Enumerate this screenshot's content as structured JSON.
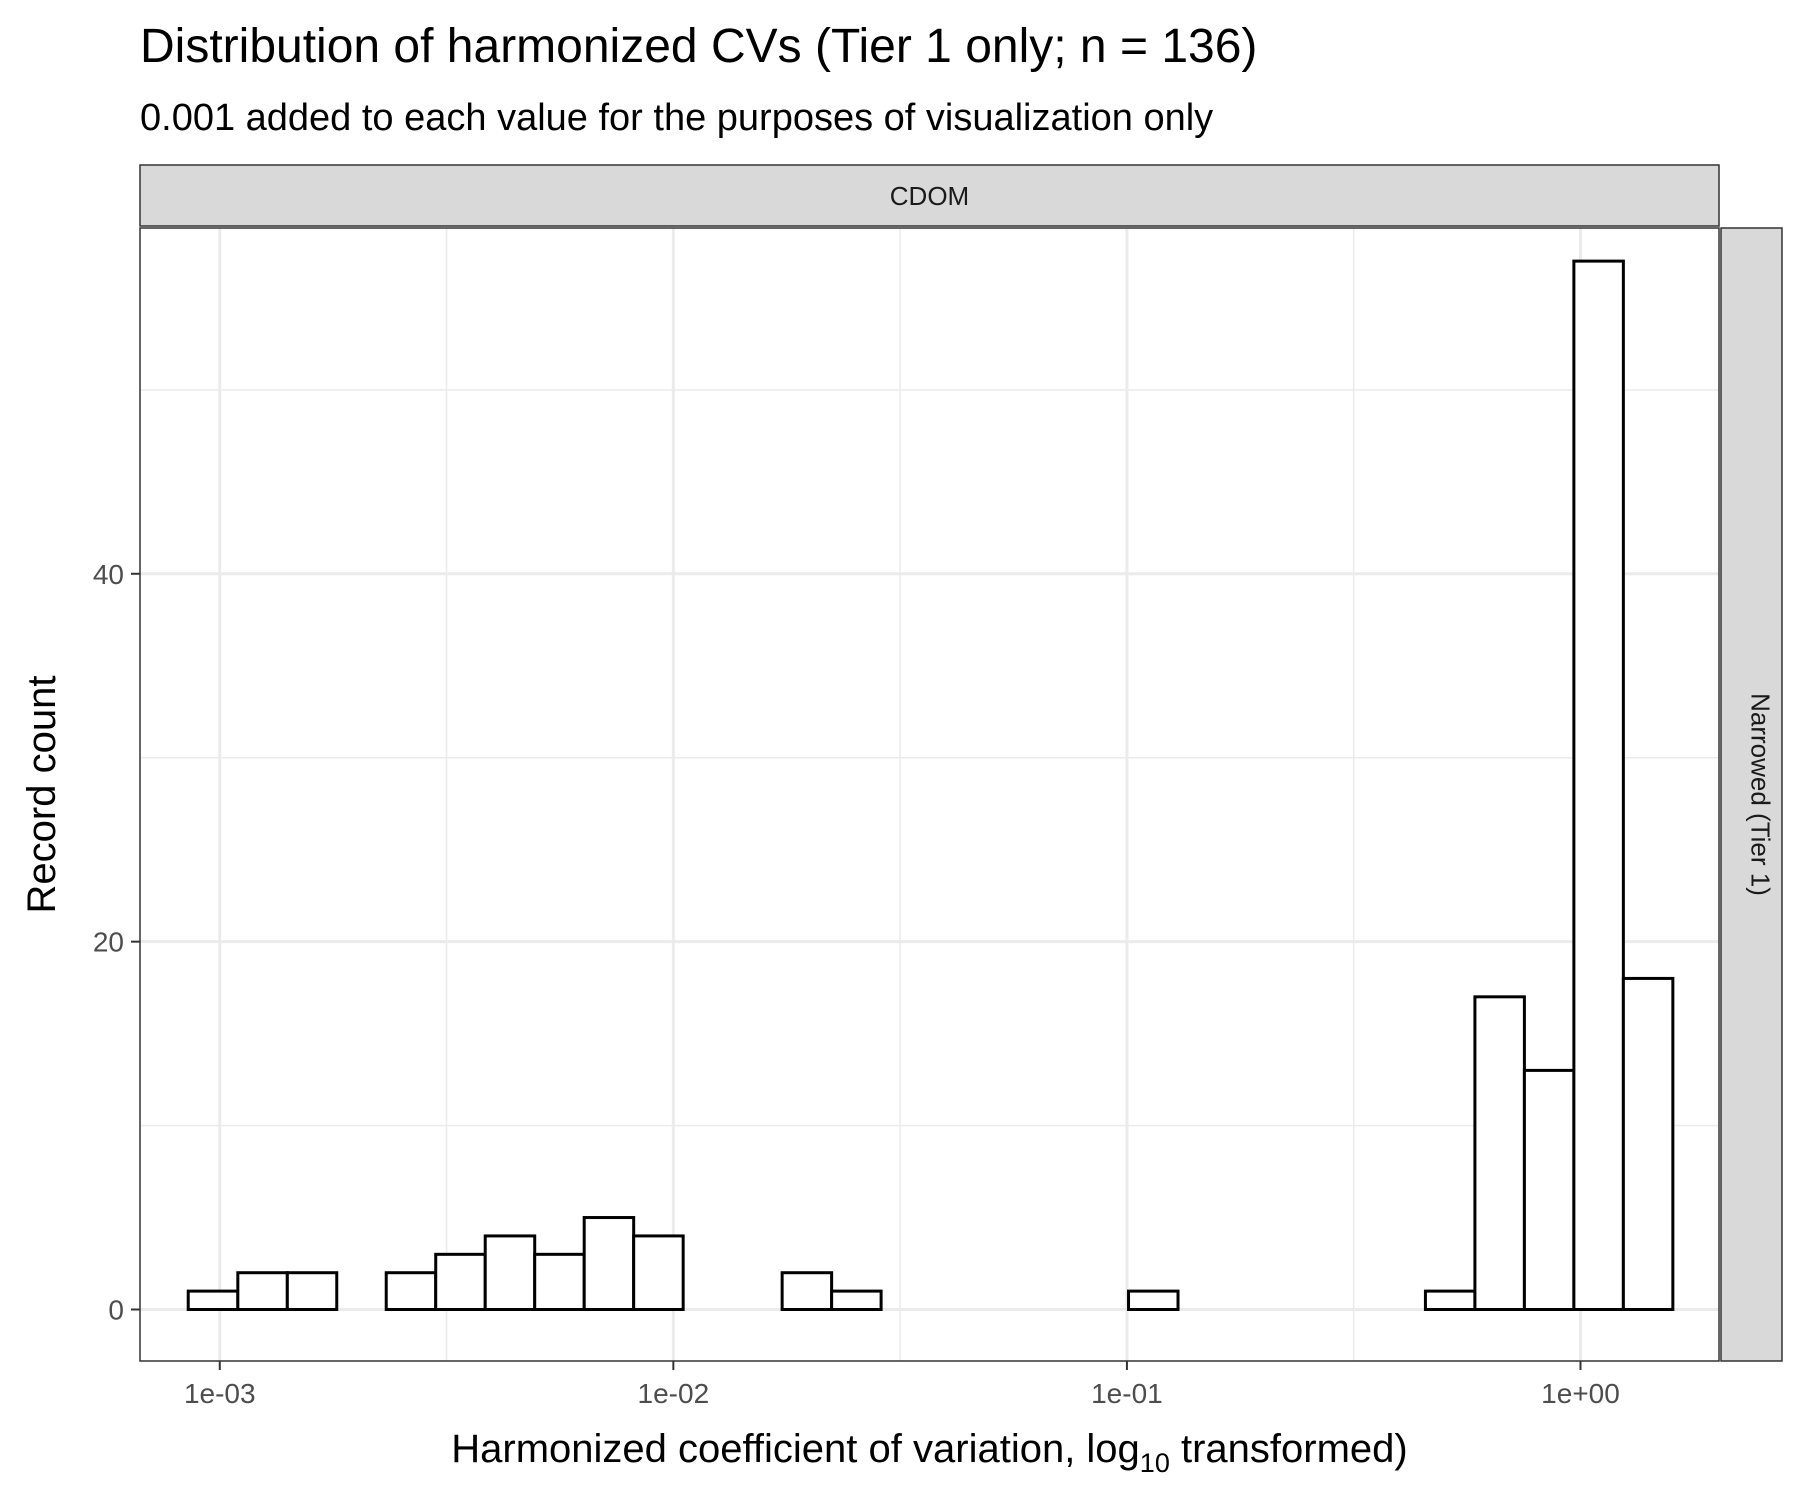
{
  "chart_data": {
    "type": "bar",
    "title": "Distribution of harmonized CVs (Tier 1 only; n = 136)",
    "subtitle": "0.001 added to each value for the purposes of visualization only",
    "facet_top": "CDOM",
    "facet_right": "Narrowed (Tier 1)",
    "xlabel": {
      "before": "Harmonized coefficient of variation,  log",
      "sub": "10",
      "after": "  transformed)"
    },
    "ylabel": "Record count",
    "x_scale": "log10",
    "xlim": [
      0.000667,
      2.02
    ],
    "ylim": [
      -2.8,
      58.8
    ],
    "x_ticks": [
      {
        "value": 0.001,
        "label": "1e-03"
      },
      {
        "value": 0.01,
        "label": "1e-02"
      },
      {
        "value": 0.1,
        "label": "1e-01"
      },
      {
        "value": 1,
        "label": "1e+00"
      }
    ],
    "y_ticks": [
      {
        "value": 0,
        "label": "0"
      },
      {
        "value": 20,
        "label": "20"
      },
      {
        "value": 40,
        "label": "40"
      }
    ],
    "x_minor_ticks": [
      0.003162,
      0.03162,
      0.3162
    ],
    "y_minor_ticks": [
      10,
      30,
      50
    ],
    "grid": true,
    "bins": [
      {
        "x0": 0.000852,
        "x1": 0.001096,
        "count": 1
      },
      {
        "x0": 0.001096,
        "x1": 0.001409,
        "count": 2
      },
      {
        "x0": 0.001409,
        "x1": 0.001811,
        "count": 2
      },
      {
        "x0": 0.001811,
        "x1": 0.002328,
        "count": 0
      },
      {
        "x0": 0.002328,
        "x1": 0.002993,
        "count": 2
      },
      {
        "x0": 0.002993,
        "x1": 0.003848,
        "count": 3
      },
      {
        "x0": 0.003848,
        "x1": 0.004947,
        "count": 4
      },
      {
        "x0": 0.004947,
        "x1": 0.00636,
        "count": 3
      },
      {
        "x0": 0.00636,
        "x1": 0.008176,
        "count": 5
      },
      {
        "x0": 0.008176,
        "x1": 0.010511,
        "count": 4
      },
      {
        "x0": 0.010511,
        "x1": 0.013513,
        "count": 0
      },
      {
        "x0": 0.013513,
        "x1": 0.017372,
        "count": 0
      },
      {
        "x0": 0.017372,
        "x1": 0.022333,
        "count": 2
      },
      {
        "x0": 0.022333,
        "x1": 0.028711,
        "count": 1
      },
      {
        "x0": 0.028711,
        "x1": 0.03691,
        "count": 0
      },
      {
        "x0": 0.03691,
        "x1": 0.04745,
        "count": 0
      },
      {
        "x0": 0.04745,
        "x1": 0.061,
        "count": 0
      },
      {
        "x0": 0.061,
        "x1": 0.07842,
        "count": 0
      },
      {
        "x0": 0.07842,
        "x1": 0.10082,
        "count": 0
      },
      {
        "x0": 0.10082,
        "x1": 0.12961,
        "count": 1
      },
      {
        "x0": 0.12961,
        "x1": 0.16662,
        "count": 0
      },
      {
        "x0": 0.16662,
        "x1": 0.2142,
        "count": 0
      },
      {
        "x0": 0.2142,
        "x1": 0.27537,
        "count": 0
      },
      {
        "x0": 0.27537,
        "x1": 0.35401,
        "count": 0
      },
      {
        "x0": 0.35401,
        "x1": 0.45511,
        "count": 0
      },
      {
        "x0": 0.45511,
        "x1": 0.58508,
        "count": 1
      },
      {
        "x0": 0.58508,
        "x1": 0.75216,
        "count": 17
      },
      {
        "x0": 0.75216,
        "x1": 0.96696,
        "count": 13
      },
      {
        "x0": 0.96696,
        "x1": 1.2431,
        "count": 57
      },
      {
        "x0": 1.2431,
        "x1": 1.5981,
        "count": 18
      }
    ]
  }
}
